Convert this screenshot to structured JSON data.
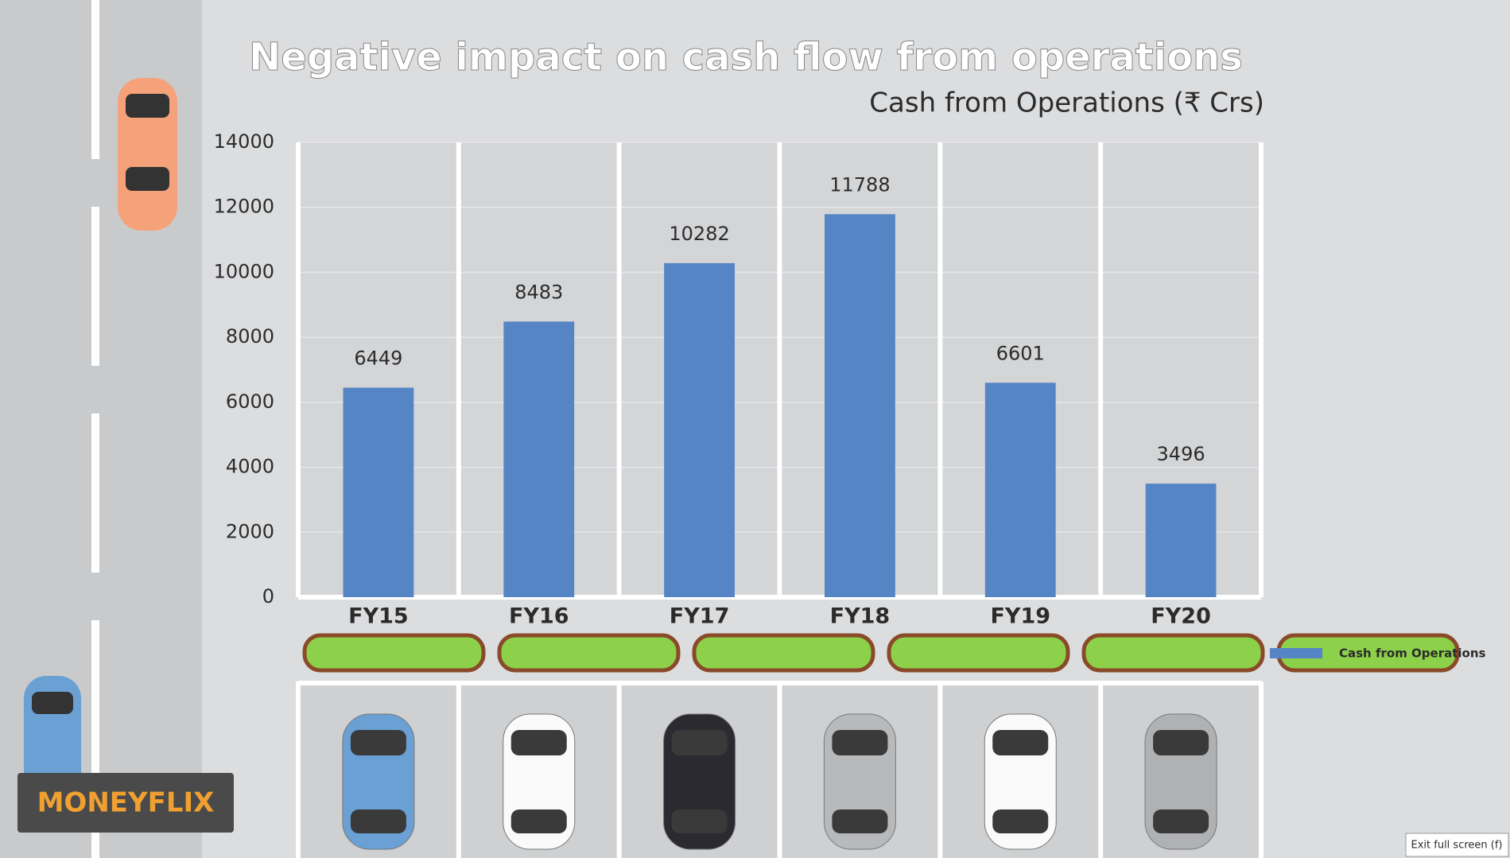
{
  "chart_data": {
    "type": "bar",
    "title": "Negative impact on cash flow from operations",
    "subtitle": "Cash from Operations (₹ Crs)",
    "categories": [
      "FY15",
      "FY16",
      "FY17",
      "FY18",
      "FY19",
      "FY20"
    ],
    "series": [
      {
        "name": "Cash from Operations",
        "color": "#5585c5",
        "values": [
          6449,
          8483,
          10282,
          11788,
          6601,
          3496
        ]
      }
    ],
    "ylim": [
      0,
      14000
    ],
    "yticks": [
      0,
      2000,
      4000,
      6000,
      8000,
      10000,
      12000,
      14000
    ],
    "grid": true,
    "legend": "right"
  },
  "logo": "MONEYFLIX",
  "exit_button": "Exit full screen (f)"
}
